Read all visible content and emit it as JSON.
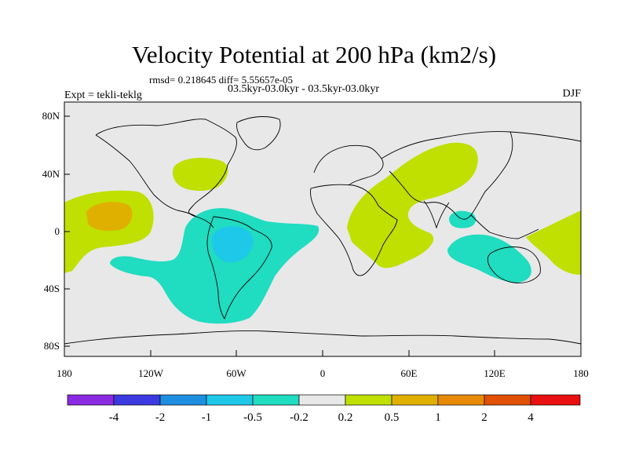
{
  "header": {
    "title": "Velocity Potential at 200 hPa (km2/s)",
    "stats": "rmsd= 0.218645 diff= 5.55657e-05",
    "period": "03.5kyr-03.0kyr - 03.5kyr-03.0kyr",
    "experiment": "Expt = tekli-teklg",
    "season": "DJF"
  },
  "axes": {
    "lat_labels": [
      "80N",
      "40N",
      "0",
      "40S",
      "80S"
    ],
    "lon_labels": [
      "180",
      "120W",
      "60W",
      "0",
      "60E",
      "120E",
      "180"
    ]
  },
  "colorbar": {
    "colors": [
      "#8a2be2",
      "#3a3ae0",
      "#1e8fe0",
      "#1ec8e8",
      "#20dcc0",
      "#e8e8e8",
      "#bfe000",
      "#e0b000",
      "#e88a00",
      "#e05000",
      "#e81010"
    ],
    "labels": [
      "-4",
      "-2",
      "-1",
      "-0.5",
      "-0.2",
      "0.2",
      "0.5",
      "1",
      "2",
      "4"
    ]
  },
  "fields": {
    "background_color": "#e8e8e8",
    "positive_weak_color": "#bfe000",
    "positive_mid_color": "#e0b000",
    "negative_weak_color": "#20dcc0",
    "negative_mid_color": "#1ec8e8"
  }
}
